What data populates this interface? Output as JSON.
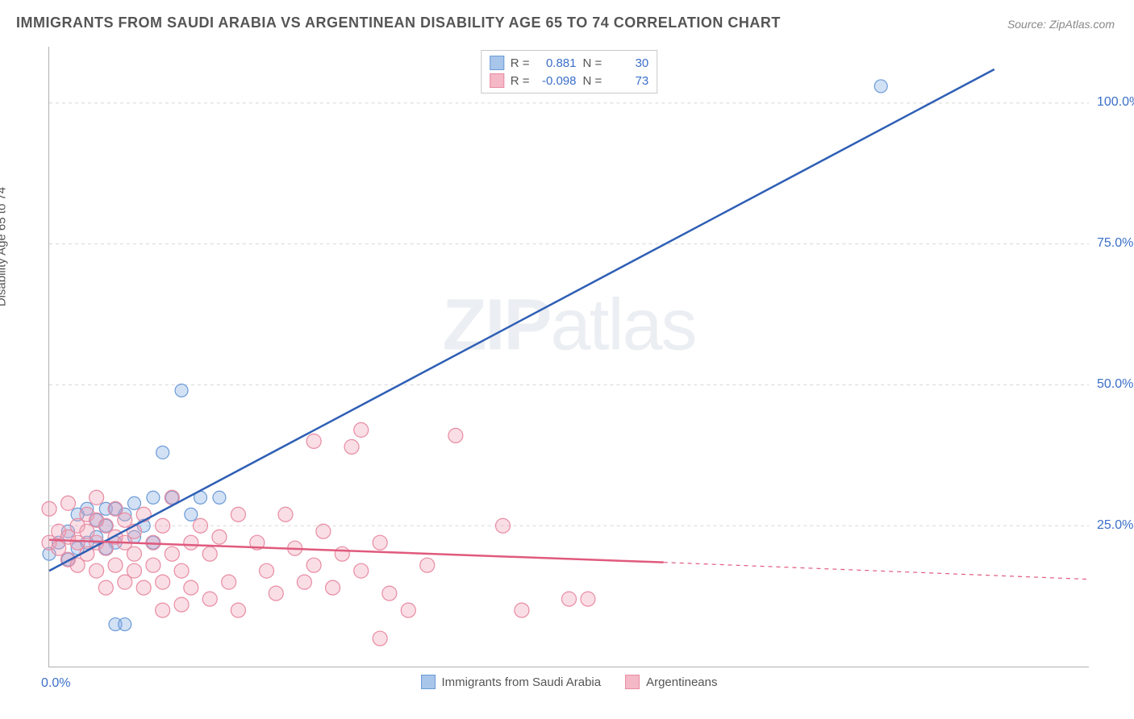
{
  "title": "IMMIGRANTS FROM SAUDI ARABIA VS ARGENTINEAN DISABILITY AGE 65 TO 74 CORRELATION CHART",
  "source": "Source: ZipAtlas.com",
  "y_axis_label": "Disability Age 65 to 74",
  "watermark": {
    "bold": "ZIP",
    "rest": "atlas"
  },
  "chart": {
    "type": "scatter-with-regression",
    "background_color": "#ffffff",
    "grid_color": "#d8d8d8",
    "axis_color": "#b0b0b0",
    "tick_label_color": "#3b6fc9",
    "xlim": [
      0,
      110
    ],
    "ylim": [
      0,
      110
    ],
    "x_origin_label": "0.0%",
    "y_ticks": [
      {
        "v": 25,
        "label": "25.0%"
      },
      {
        "v": 50,
        "label": "50.0%"
      },
      {
        "v": 75,
        "label": "75.0%"
      },
      {
        "v": 100,
        "label": "100.0%"
      }
    ],
    "legend_top": [
      {
        "swatch_fill": "#a8c5ea",
        "swatch_stroke": "#6a9bd8",
        "r_label": "R =",
        "r_value": "0.881",
        "n_label": "N =",
        "n_value": "30"
      },
      {
        "swatch_fill": "#f5b8c6",
        "swatch_stroke": "#e88ba2",
        "r_label": "R =",
        "r_value": "-0.098",
        "n_label": "N =",
        "n_value": "73"
      }
    ],
    "legend_bottom": [
      {
        "swatch_fill": "#a8c5ea",
        "swatch_stroke": "#6a9bd8",
        "label": "Immigrants from Saudi Arabia"
      },
      {
        "swatch_fill": "#f5b8c6",
        "swatch_stroke": "#e88ba2",
        "label": "Argentineans"
      }
    ],
    "series": [
      {
        "name": "saudi",
        "marker_fill": "rgba(130,170,225,0.35)",
        "marker_stroke": "#6a9bd8",
        "marker_r": 8,
        "line_color": "#2e5fb5",
        "line_width": 2.5,
        "regression": {
          "x1": 0,
          "y1": 17,
          "x2": 100,
          "y2": 106,
          "dash_from_x": 100
        },
        "points": [
          [
            0,
            20
          ],
          [
            1,
            22
          ],
          [
            2,
            24
          ],
          [
            2,
            19
          ],
          [
            3,
            21
          ],
          [
            3,
            27
          ],
          [
            4,
            22
          ],
          [
            4,
            28
          ],
          [
            5,
            23
          ],
          [
            5,
            26
          ],
          [
            6,
            21
          ],
          [
            6,
            28
          ],
          [
            7,
            22
          ],
          [
            7,
            28
          ],
          [
            7,
            7.5
          ],
          [
            8,
            27
          ],
          [
            8,
            7.5
          ],
          [
            9,
            23
          ],
          [
            9,
            29
          ],
          [
            10,
            25
          ],
          [
            11,
            30
          ],
          [
            11,
            22
          ],
          [
            12,
            38
          ],
          [
            13,
            30
          ],
          [
            14,
            49
          ],
          [
            15,
            27
          ],
          [
            16,
            30
          ],
          [
            18,
            30
          ],
          [
            88,
            103
          ],
          [
            6,
            25
          ]
        ]
      },
      {
        "name": "argentinean",
        "marker_fill": "rgba(240,160,180,0.35)",
        "marker_stroke": "#e88ba2",
        "marker_r": 9,
        "line_color": "#e05a7d",
        "line_width": 2.5,
        "regression": {
          "x1": 0,
          "y1": 22.5,
          "x2": 65,
          "y2": 18.5,
          "dash_from_x": 65,
          "dash_to_x": 110,
          "dash_to_y": 15.5
        },
        "points": [
          [
            0,
            22
          ],
          [
            0,
            28
          ],
          [
            1,
            24
          ],
          [
            1,
            21
          ],
          [
            2,
            23
          ],
          [
            2,
            19
          ],
          [
            2,
            29
          ],
          [
            3,
            25
          ],
          [
            3,
            22
          ],
          [
            3,
            18
          ],
          [
            4,
            24
          ],
          [
            4,
            20
          ],
          [
            4,
            27
          ],
          [
            5,
            22
          ],
          [
            5,
            17
          ],
          [
            5,
            26
          ],
          [
            5,
            30
          ],
          [
            6,
            21
          ],
          [
            6,
            25
          ],
          [
            6,
            14
          ],
          [
            7,
            23
          ],
          [
            7,
            18
          ],
          [
            7,
            28
          ],
          [
            8,
            22
          ],
          [
            8,
            15
          ],
          [
            8,
            26
          ],
          [
            9,
            20
          ],
          [
            9,
            17
          ],
          [
            9,
            24
          ],
          [
            10,
            27
          ],
          [
            10,
            14
          ],
          [
            11,
            22
          ],
          [
            11,
            18
          ],
          [
            12,
            25
          ],
          [
            12,
            15
          ],
          [
            12,
            10
          ],
          [
            13,
            20
          ],
          [
            13,
            30
          ],
          [
            14,
            17
          ],
          [
            14,
            11
          ],
          [
            15,
            22
          ],
          [
            15,
            14
          ],
          [
            16,
            25
          ],
          [
            17,
            20
          ],
          [
            17,
            12
          ],
          [
            18,
            23
          ],
          [
            19,
            15
          ],
          [
            20,
            27
          ],
          [
            20,
            10
          ],
          [
            22,
            22
          ],
          [
            23,
            17
          ],
          [
            24,
            13
          ],
          [
            25,
            27
          ],
          [
            26,
            21
          ],
          [
            27,
            15
          ],
          [
            28,
            40
          ],
          [
            28,
            18
          ],
          [
            29,
            24
          ],
          [
            30,
            14
          ],
          [
            31,
            20
          ],
          [
            32,
            39
          ],
          [
            33,
            17
          ],
          [
            33,
            42
          ],
          [
            35,
            22
          ],
          [
            35,
            5
          ],
          [
            36,
            13
          ],
          [
            38,
            10
          ],
          [
            40,
            18
          ],
          [
            43,
            41
          ],
          [
            48,
            25
          ],
          [
            50,
            10
          ],
          [
            55,
            12
          ],
          [
            57,
            12
          ]
        ]
      }
    ]
  }
}
